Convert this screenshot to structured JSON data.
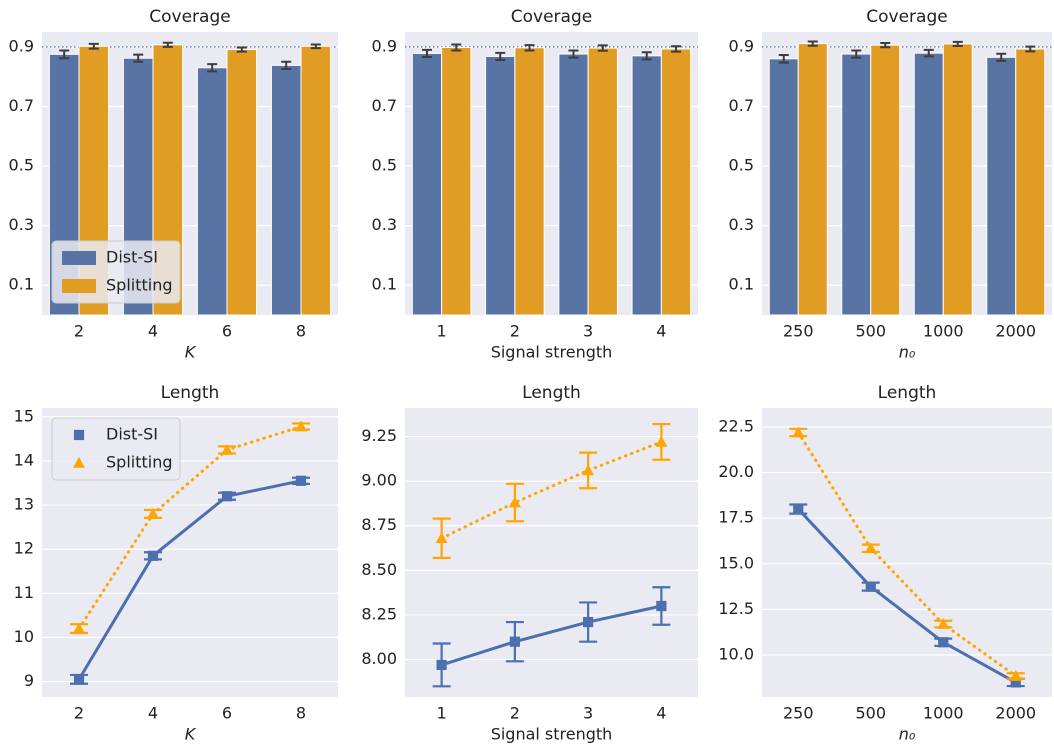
{
  "chart_data": [
    {
      "type": "bar",
      "title": "Coverage",
      "x_label": "K",
      "x_label_italic": true,
      "categories": [
        "2",
        "4",
        "6",
        "8"
      ],
      "series": [
        {
          "name": "Dist-SI",
          "color": "#5874a5",
          "values": [
            0.875,
            0.862,
            0.83,
            0.838
          ],
          "errors": [
            0.013,
            0.012,
            0.012,
            0.012
          ]
        },
        {
          "name": "Splitting",
          "color": "#e19c24",
          "values": [
            0.902,
            0.907,
            0.891,
            0.902
          ],
          "errors": [
            0.008,
            0.007,
            0.007,
            0.006
          ]
        }
      ],
      "ylim": [
        0,
        0.95
      ],
      "yticks": [
        0.1,
        0.3,
        0.5,
        0.7,
        0.9
      ],
      "reference_line": 0.9,
      "grid": true,
      "legend": "lower left"
    },
    {
      "type": "bar",
      "title": "Coverage",
      "x_label": "Signal strength",
      "x_label_italic": false,
      "categories": [
        "1",
        "2",
        "3",
        "4"
      ],
      "series": [
        {
          "color": "#5874a5",
          "values": [
            0.878,
            0.868,
            0.876,
            0.87
          ],
          "errors": [
            0.012,
            0.012,
            0.012,
            0.012
          ]
        },
        {
          "color": "#e19c24",
          "values": [
            0.898,
            0.897,
            0.896,
            0.893
          ],
          "errors": [
            0.01,
            0.009,
            0.009,
            0.009
          ]
        }
      ],
      "ylim": [
        0,
        0.95
      ],
      "yticks": [
        0.1,
        0.3,
        0.5,
        0.7,
        0.9
      ],
      "reference_line": 0.9,
      "grid": true
    },
    {
      "type": "bar",
      "title": "Coverage",
      "x_label": "n₀",
      "x_label_italic": true,
      "categories": [
        "250",
        "500",
        "1000",
        "2000"
      ],
      "series": [
        {
          "color": "#5874a5",
          "values": [
            0.86,
            0.876,
            0.879,
            0.865
          ],
          "errors": [
            0.013,
            0.012,
            0.011,
            0.012
          ]
        },
        {
          "color": "#e19c24",
          "values": [
            0.911,
            0.906,
            0.91,
            0.893
          ],
          "errors": [
            0.007,
            0.007,
            0.007,
            0.008
          ]
        }
      ],
      "ylim": [
        0,
        0.95
      ],
      "yticks": [
        0.1,
        0.3,
        0.5,
        0.7,
        0.9
      ],
      "reference_line": 0.9,
      "grid": true
    },
    {
      "type": "line",
      "title": "Length",
      "x_label": "K",
      "x_label_italic": true,
      "categories": [
        "2",
        "4",
        "6",
        "8"
      ],
      "series": [
        {
          "name": "Dist-SI",
          "color": "#4c6fb0",
          "marker": "square",
          "line_style": "solid",
          "values": [
            9.05,
            11.85,
            13.2,
            13.55
          ],
          "errors": [
            0.1,
            0.08,
            0.08,
            0.07
          ]
        },
        {
          "name": "Splitting",
          "color": "#ffa500",
          "marker": "triangle",
          "line_style": "dotted",
          "values": [
            10.2,
            12.8,
            14.25,
            14.78
          ],
          "errors": [
            0.1,
            0.09,
            0.08,
            0.07
          ]
        }
      ],
      "ylim": [
        8.65,
        15.2
      ],
      "yticks": [
        9,
        10,
        11,
        12,
        13,
        14,
        15
      ],
      "grid": true,
      "legend": "upper left"
    },
    {
      "type": "line",
      "title": "Length",
      "x_label": "Signal strength",
      "x_label_italic": false,
      "categories": [
        "1",
        "2",
        "3",
        "4"
      ],
      "series": [
        {
          "color": "#4c6fb0",
          "marker": "square",
          "line_style": "solid",
          "values": [
            7.97,
            8.1,
            8.21,
            8.3
          ],
          "errors": [
            0.12,
            0.11,
            0.11,
            0.105
          ]
        },
        {
          "color": "#ffa500",
          "marker": "triangle",
          "line_style": "dotted",
          "values": [
            8.68,
            8.88,
            9.06,
            9.22
          ],
          "errors": [
            0.11,
            0.105,
            0.1,
            0.1
          ]
        }
      ],
      "ylim": [
        7.79,
        9.41
      ],
      "yticks": [
        {
          "value": 8,
          "label": "8.00"
        },
        8.25,
        {
          "value": 8.5,
          "label": "8.50"
        },
        8.75,
        {
          "value": 9,
          "label": "9.00"
        },
        9.25
      ],
      "grid": true
    },
    {
      "type": "line",
      "title": "Length",
      "x_label": "n₀",
      "x_label_italic": true,
      "categories": [
        "250",
        "500",
        "1000",
        "2000"
      ],
      "series": [
        {
          "color": "#4c6fb0",
          "marker": "square",
          "line_style": "solid",
          "values": [
            18.0,
            13.75,
            10.7,
            8.5
          ],
          "errors": [
            0.25,
            0.22,
            0.2,
            0.2
          ]
        },
        {
          "color": "#ffa500",
          "marker": "triangle",
          "line_style": "dotted",
          "values": [
            22.2,
            15.85,
            11.7,
            8.85
          ],
          "errors": [
            0.2,
            0.2,
            0.18,
            0.15
          ]
        }
      ],
      "ylim": [
        7.7,
        23.54
      ],
      "yticks": [
        {
          "value": 10,
          "label": "10.0"
        },
        12.5,
        {
          "value": 15,
          "label": "15.0"
        },
        17.5,
        {
          "value": 20,
          "label": "20.0"
        },
        22.5
      ],
      "grid": true
    }
  ]
}
